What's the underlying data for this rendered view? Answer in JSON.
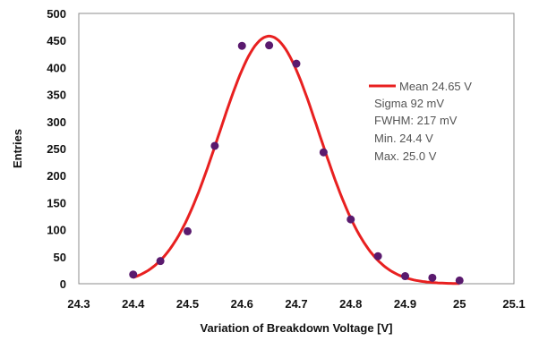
{
  "chart_data": {
    "type": "scatter",
    "xlabel": "Variation of Breakdown Voltage [V]",
    "ylabel": "Entries",
    "xlim": [
      24.3,
      25.1
    ],
    "ylim": [
      0,
      500
    ],
    "xticks": [
      "24.3",
      "24.4",
      "24.5",
      "24.6",
      "24.7",
      "24.8",
      "24.9",
      "25",
      "25.1"
    ],
    "yticks": [
      "0",
      "50",
      "100",
      "150",
      "200",
      "250",
      "300",
      "350",
      "400",
      "450",
      "500"
    ],
    "grid": false,
    "legend_position": "right",
    "points": {
      "color": "#5a1a6e",
      "x": [
        24.4,
        24.45,
        24.5,
        24.55,
        24.6,
        24.65,
        24.7,
        24.75,
        24.8,
        24.85,
        24.9,
        24.95,
        25.0
      ],
      "y": [
        17,
        42,
        97,
        255,
        440,
        441,
        407,
        243,
        119,
        51,
        14,
        11,
        6
      ]
    },
    "fit": {
      "type": "gaussian",
      "color": "#e82020",
      "mean": 24.65,
      "sigma": 0.092,
      "amplitude": 458
    },
    "legend": {
      "fit_label": "Mean 24.65 V",
      "notes": [
        "Sigma 92 mV",
        "FWHM: 217 mV",
        "Min. 24.4 V",
        "Max. 25.0 V"
      ]
    }
  }
}
